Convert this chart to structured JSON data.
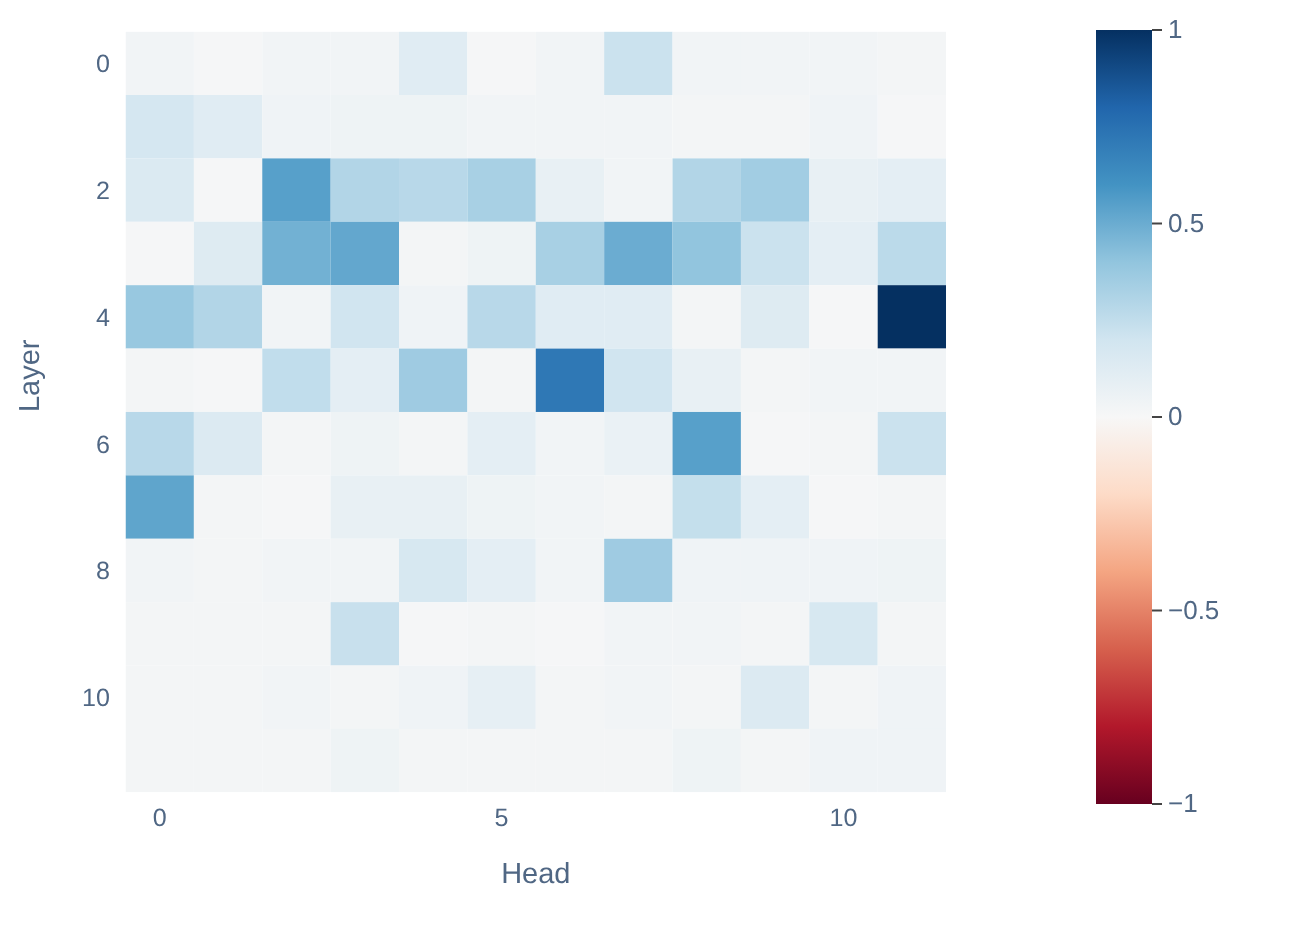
{
  "chart_data": {
    "type": "heatmap",
    "xlabel": "Head",
    "ylabel": "Layer",
    "categories": [
      "0",
      null,
      null,
      null,
      null,
      "5",
      null,
      null,
      null,
      null,
      "10",
      null
    ],
    "y_categories": [
      "0",
      null,
      "2",
      null,
      "4",
      null,
      "6",
      null,
      "8",
      null,
      "10",
      null
    ],
    "cells": [
      [
        0.03,
        0.01,
        0.03,
        0.03,
        0.12,
        0.01,
        0.03,
        0.22,
        0.03,
        0.03,
        0.03,
        0.02
      ],
      [
        0.18,
        0.12,
        0.04,
        0.05,
        0.05,
        0.03,
        0.03,
        0.03,
        0.02,
        0.02,
        0.04,
        0.01
      ],
      [
        0.15,
        0.01,
        0.55,
        0.3,
        0.28,
        0.33,
        0.08,
        0.03,
        0.3,
        0.35,
        0.08,
        0.1
      ],
      [
        0.01,
        0.13,
        0.48,
        0.52,
        0.02,
        0.05,
        0.33,
        0.5,
        0.4,
        0.22,
        0.1,
        0.27
      ],
      [
        0.38,
        0.3,
        0.03,
        0.2,
        0.04,
        0.28,
        0.12,
        0.12,
        0.02,
        0.13,
        0.01,
        1.0
      ],
      [
        0.02,
        0.01,
        0.25,
        0.1,
        0.36,
        0.02,
        0.72,
        0.2,
        0.08,
        0.02,
        0.03,
        0.03
      ],
      [
        0.28,
        0.14,
        0.02,
        0.05,
        0.02,
        0.1,
        0.03,
        0.07,
        0.55,
        0.01,
        0.02,
        0.22
      ],
      [
        0.53,
        0.02,
        0.01,
        0.08,
        0.08,
        0.05,
        0.03,
        0.02,
        0.24,
        0.1,
        0.01,
        0.02
      ],
      [
        0.03,
        0.02,
        0.03,
        0.03,
        0.17,
        0.1,
        0.03,
        0.36,
        0.04,
        0.04,
        0.04,
        0.05
      ],
      [
        0.02,
        0.02,
        0.02,
        0.23,
        0.01,
        0.02,
        0.01,
        0.03,
        0.03,
        0.02,
        0.17,
        0.02
      ],
      [
        0.02,
        0.02,
        0.03,
        0.02,
        0.04,
        0.09,
        0.02,
        0.03,
        0.02,
        0.14,
        0.02,
        0.04
      ],
      [
        0.02,
        0.02,
        0.02,
        0.05,
        0.02,
        0.02,
        0.02,
        0.02,
        0.05,
        0.02,
        0.04,
        0.04
      ]
    ],
    "clim": [
      -1,
      1
    ],
    "cticks": [
      {
        "value": -1,
        "label": "−1"
      },
      {
        "value": -0.5,
        "label": "−0.5"
      },
      0,
      0.5,
      1
    ]
  }
}
